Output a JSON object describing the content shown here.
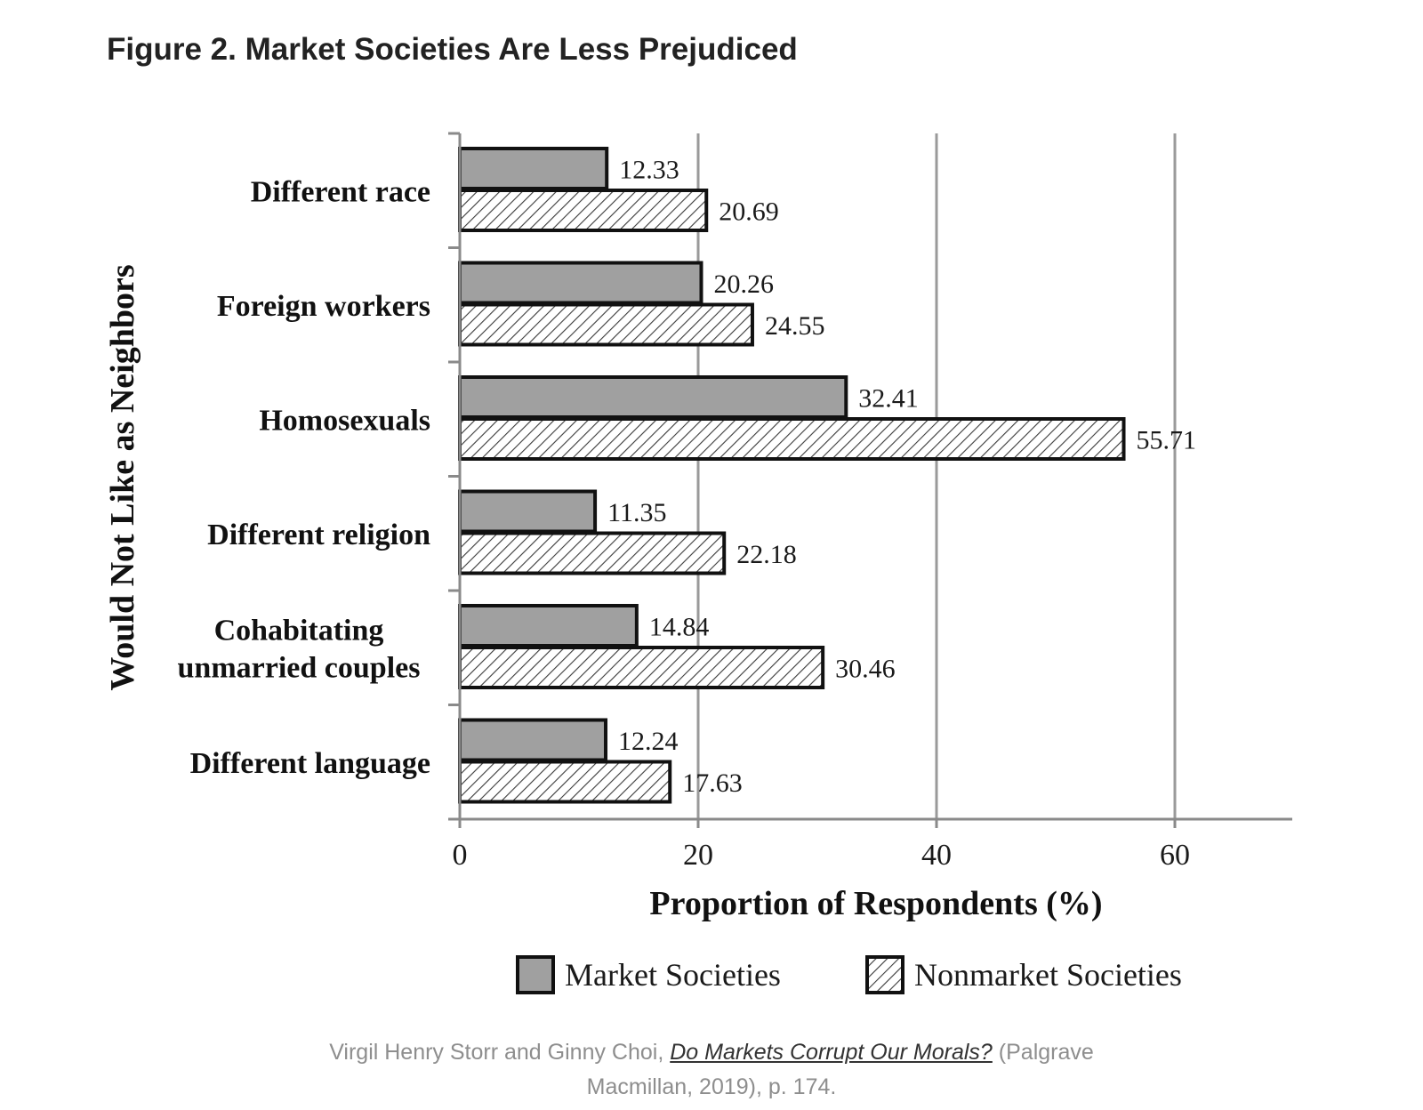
{
  "figure": {
    "title": "Figure 2. Market Societies Are Less Prejudiced"
  },
  "caption": {
    "before": "Virgil Henry Storr and Ginny Choi, ",
    "link": "Do Markets Corrupt Our Morals?",
    "after_line1": " (Palgrave",
    "line2": "Macmillan, 2019), p. 174."
  },
  "chart_data": {
    "type": "bar",
    "orientation": "horizontal",
    "categories": [
      [
        "Different race"
      ],
      [
        "Foreign workers"
      ],
      [
        "Homosexuals"
      ],
      [
        "Different religion"
      ],
      [
        "Cohabitating",
        "unmarried couples"
      ],
      [
        "Different language"
      ]
    ],
    "series": [
      {
        "name": "Market Societies",
        "color": "#a0a0a0",
        "pattern": "solid",
        "values": [
          12.33,
          20.26,
          32.41,
          11.35,
          14.84,
          12.24
        ],
        "labels": [
          "12.33",
          "20.26",
          "32.41",
          "11.35",
          "14.84",
          "12.24"
        ]
      },
      {
        "name": "Nonmarket Societies",
        "color": "#ffffff",
        "pattern": "hatched",
        "values": [
          20.69,
          24.55,
          55.71,
          22.18,
          30.46,
          17.63
        ],
        "labels": [
          "20.69",
          "24.55",
          "55.71",
          "22.18",
          "30.46",
          "17.63"
        ]
      }
    ],
    "xlabel": "Proportion of Respondents (%)",
    "ylabel": "Would Not Like as Neighbors",
    "xlim": [
      0,
      70
    ],
    "xticks": [
      0,
      20,
      40,
      60
    ],
    "xtick_labels": [
      "0",
      "20",
      "40",
      "60"
    ],
    "grid": "vertical",
    "legend_position": "bottom"
  }
}
